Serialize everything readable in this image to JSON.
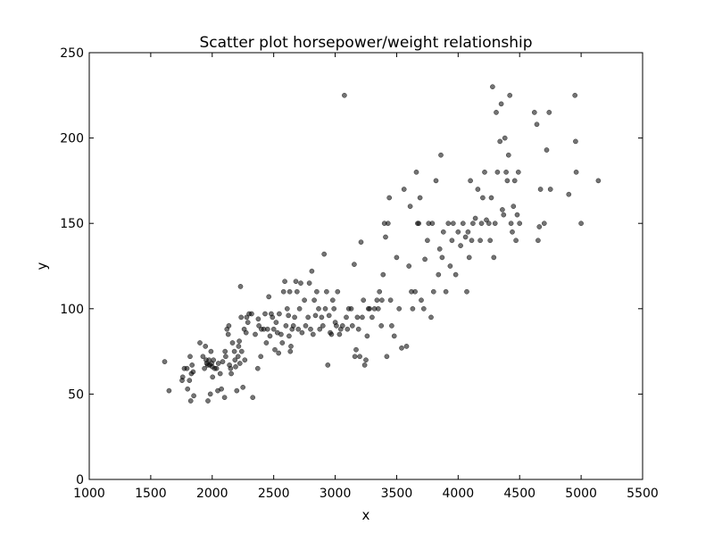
{
  "chart_data": {
    "type": "scatter",
    "title": "Scatter plot horsepower/weight relationship",
    "xlabel": "x",
    "ylabel": "y",
    "xlim": [
      1000,
      5500
    ],
    "ylim": [
      0,
      250
    ],
    "xticks": [
      1000,
      1500,
      2000,
      2500,
      3000,
      3500,
      4000,
      4500,
      5000,
      5500
    ],
    "yticks": [
      0,
      50,
      100,
      150,
      200,
      250
    ],
    "xtick_labels": [
      "1000",
      "1500",
      "2000",
      "2500",
      "3000",
      "3500",
      "4000",
      "4500",
      "5000",
      "5500"
    ],
    "ytick_labels": [
      "0",
      "50",
      "100",
      "150",
      "200",
      "250"
    ],
    "grid": false,
    "marker_color": "#000000",
    "marker_opacity": 0.55,
    "points": [
      [
        1613,
        69
      ],
      [
        1649,
        52
      ],
      [
        1755,
        58
      ],
      [
        1760,
        60
      ],
      [
        1773,
        65
      ],
      [
        1795,
        65
      ],
      [
        1800,
        53
      ],
      [
        1815,
        58
      ],
      [
        1820,
        72
      ],
      [
        1825,
        46
      ],
      [
        1830,
        62
      ],
      [
        1836,
        67
      ],
      [
        1845,
        63
      ],
      [
        1850,
        49
      ],
      [
        1900,
        80
      ],
      [
        1925,
        72
      ],
      [
        1937,
        65
      ],
      [
        1945,
        78
      ],
      [
        1950,
        70
      ],
      [
        1955,
        68
      ],
      [
        1963,
        67
      ],
      [
        1965,
        46
      ],
      [
        1975,
        70
      ],
      [
        1980,
        67
      ],
      [
        1985,
        50
      ],
      [
        1990,
        75
      ],
      [
        1995,
        68
      ],
      [
        2000,
        66
      ],
      [
        2003,
        60
      ],
      [
        2010,
        70
      ],
      [
        2020,
        65
      ],
      [
        2035,
        65
      ],
      [
        2045,
        52
      ],
      [
        2050,
        68
      ],
      [
        2065,
        62
      ],
      [
        2075,
        53
      ],
      [
        2085,
        69
      ],
      [
        2100,
        48
      ],
      [
        2105,
        75
      ],
      [
        2110,
        72
      ],
      [
        2120,
        88
      ],
      [
        2130,
        85
      ],
      [
        2135,
        90
      ],
      [
        2140,
        67
      ],
      [
        2150,
        65
      ],
      [
        2155,
        62
      ],
      [
        2165,
        80
      ],
      [
        2180,
        75
      ],
      [
        2185,
        70
      ],
      [
        2190,
        66
      ],
      [
        2200,
        52
      ],
      [
        2210,
        72
      ],
      [
        2215,
        78
      ],
      [
        2220,
        81
      ],
      [
        2225,
        68
      ],
      [
        2230,
        113
      ],
      [
        2235,
        95
      ],
      [
        2240,
        75
      ],
      [
        2250,
        54
      ],
      [
        2260,
        88
      ],
      [
        2265,
        70
      ],
      [
        2275,
        86
      ],
      [
        2280,
        95
      ],
      [
        2290,
        92
      ],
      [
        2300,
        97
      ],
      [
        2320,
        97
      ],
      [
        2330,
        48
      ],
      [
        2350,
        85
      ],
      [
        2370,
        65
      ],
      [
        2375,
        94
      ],
      [
        2380,
        90
      ],
      [
        2395,
        72
      ],
      [
        2400,
        88
      ],
      [
        2420,
        88
      ],
      [
        2430,
        97
      ],
      [
        2440,
        80
      ],
      [
        2450,
        88
      ],
      [
        2460,
        107
      ],
      [
        2470,
        84
      ],
      [
        2480,
        97
      ],
      [
        2490,
        95
      ],
      [
        2500,
        88
      ],
      [
        2510,
        76
      ],
      [
        2520,
        92
      ],
      [
        2530,
        86
      ],
      [
        2540,
        74
      ],
      [
        2545,
        97
      ],
      [
        2560,
        85
      ],
      [
        2570,
        80
      ],
      [
        2580,
        110
      ],
      [
        2590,
        116
      ],
      [
        2600,
        90
      ],
      [
        2610,
        100
      ],
      [
        2620,
        96
      ],
      [
        2625,
        84
      ],
      [
        2630,
        110
      ],
      [
        2635,
        75
      ],
      [
        2640,
        78
      ],
      [
        2650,
        88
      ],
      [
        2660,
        90
      ],
      [
        2670,
        95
      ],
      [
        2680,
        116
      ],
      [
        2690,
        110
      ],
      [
        2700,
        88
      ],
      [
        2710,
        100
      ],
      [
        2720,
        115
      ],
      [
        2730,
        86
      ],
      [
        2750,
        105
      ],
      [
        2760,
        90
      ],
      [
        2780,
        95
      ],
      [
        2790,
        115
      ],
      [
        2800,
        88
      ],
      [
        2810,
        122
      ],
      [
        2820,
        85
      ],
      [
        2830,
        105
      ],
      [
        2840,
        96
      ],
      [
        2850,
        110
      ],
      [
        2865,
        100
      ],
      [
        2875,
        88
      ],
      [
        2890,
        95
      ],
      [
        2900,
        90
      ],
      [
        2910,
        132
      ],
      [
        2920,
        100
      ],
      [
        2930,
        110
      ],
      [
        2940,
        67
      ],
      [
        2950,
        96
      ],
      [
        2960,
        86
      ],
      [
        2970,
        85
      ],
      [
        2980,
        105
      ],
      [
        2990,
        100
      ],
      [
        3000,
        92
      ],
      [
        3010,
        90
      ],
      [
        3020,
        110
      ],
      [
        3035,
        85
      ],
      [
        3045,
        88
      ],
      [
        3060,
        90
      ],
      [
        3075,
        225
      ],
      [
        3090,
        95
      ],
      [
        3100,
        88
      ],
      [
        3110,
        100
      ],
      [
        3130,
        100
      ],
      [
        3140,
        90
      ],
      [
        3155,
        126
      ],
      [
        3160,
        72
      ],
      [
        3170,
        76
      ],
      [
        3180,
        95
      ],
      [
        3190,
        88
      ],
      [
        3200,
        72
      ],
      [
        3210,
        139
      ],
      [
        3220,
        95
      ],
      [
        3230,
        105
      ],
      [
        3240,
        67
      ],
      [
        3250,
        70
      ],
      [
        3260,
        84
      ],
      [
        3270,
        100
      ],
      [
        3280,
        100
      ],
      [
        3300,
        95
      ],
      [
        3320,
        100
      ],
      [
        3340,
        105
      ],
      [
        3350,
        100
      ],
      [
        3360,
        110
      ],
      [
        3375,
        90
      ],
      [
        3380,
        105
      ],
      [
        3390,
        120
      ],
      [
        3400,
        150
      ],
      [
        3410,
        142
      ],
      [
        3420,
        72
      ],
      [
        3430,
        150
      ],
      [
        3440,
        165
      ],
      [
        3450,
        105
      ],
      [
        3460,
        90
      ],
      [
        3480,
        84
      ],
      [
        3500,
        130
      ],
      [
        3520,
        100
      ],
      [
        3540,
        77
      ],
      [
        3560,
        170
      ],
      [
        3580,
        78
      ],
      [
        3600,
        125
      ],
      [
        3610,
        160
      ],
      [
        3620,
        110
      ],
      [
        3630,
        100
      ],
      [
        3650,
        110
      ],
      [
        3660,
        180
      ],
      [
        3670,
        150
      ],
      [
        3680,
        150
      ],
      [
        3690,
        165
      ],
      [
        3700,
        105
      ],
      [
        3720,
        100
      ],
      [
        3730,
        129
      ],
      [
        3750,
        140
      ],
      [
        3760,
        150
      ],
      [
        3780,
        95
      ],
      [
        3790,
        150
      ],
      [
        3800,
        110
      ],
      [
        3820,
        175
      ],
      [
        3840,
        120
      ],
      [
        3850,
        135
      ],
      [
        3860,
        190
      ],
      [
        3870,
        130
      ],
      [
        3880,
        145
      ],
      [
        3900,
        110
      ],
      [
        3920,
        150
      ],
      [
        3935,
        125
      ],
      [
        3950,
        140
      ],
      [
        3960,
        150
      ],
      [
        3980,
        120
      ],
      [
        4000,
        145
      ],
      [
        4020,
        137
      ],
      [
        4040,
        150
      ],
      [
        4060,
        142
      ],
      [
        4070,
        110
      ],
      [
        4080,
        145
      ],
      [
        4090,
        130
      ],
      [
        4100,
        175
      ],
      [
        4110,
        140
      ],
      [
        4120,
        150
      ],
      [
        4140,
        153
      ],
      [
        4160,
        170
      ],
      [
        4180,
        140
      ],
      [
        4190,
        150
      ],
      [
        4200,
        165
      ],
      [
        4215,
        180
      ],
      [
        4230,
        152
      ],
      [
        4250,
        150
      ],
      [
        4260,
        140
      ],
      [
        4270,
        165
      ],
      [
        4280,
        230
      ],
      [
        4290,
        130
      ],
      [
        4300,
        150
      ],
      [
        4310,
        215
      ],
      [
        4320,
        180
      ],
      [
        4340,
        198
      ],
      [
        4350,
        220
      ],
      [
        4360,
        158
      ],
      [
        4370,
        155
      ],
      [
        4380,
        200
      ],
      [
        4390,
        180
      ],
      [
        4400,
        175
      ],
      [
        4410,
        190
      ],
      [
        4420,
        225
      ],
      [
        4430,
        150
      ],
      [
        4440,
        145
      ],
      [
        4450,
        160
      ],
      [
        4460,
        175
      ],
      [
        4470,
        140
      ],
      [
        4480,
        155
      ],
      [
        4490,
        180
      ],
      [
        4500,
        150
      ],
      [
        4620,
        215
      ],
      [
        4640,
        208
      ],
      [
        4650,
        140
      ],
      [
        4660,
        148
      ],
      [
        4670,
        170
      ],
      [
        4700,
        150
      ],
      [
        4720,
        193
      ],
      [
        4740,
        215
      ],
      [
        4750,
        170
      ],
      [
        4900,
        167
      ],
      [
        4950,
        225
      ],
      [
        4955,
        198
      ],
      [
        4960,
        180
      ],
      [
        5000,
        150
      ],
      [
        5140,
        175
      ]
    ]
  }
}
